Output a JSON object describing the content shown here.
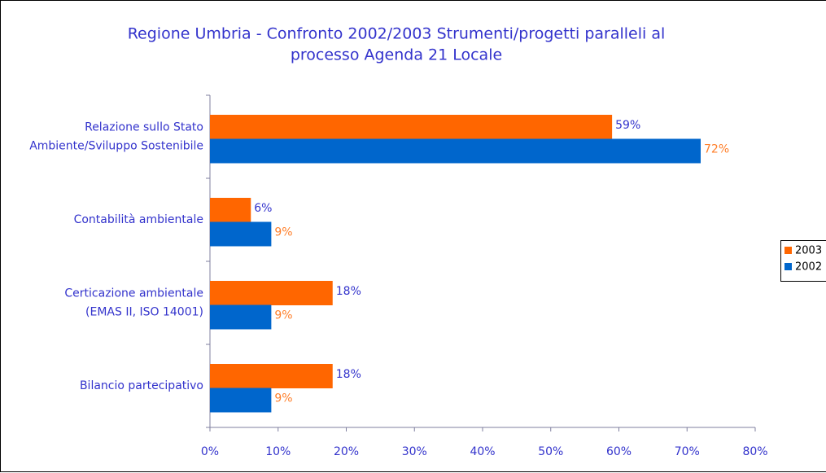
{
  "chart_data": {
    "type": "barh",
    "title": [
      "Regione Umbria - Confronto 2002/2003 Strumenti/progetti paralleli al",
      "processo Agenda 21 Locale"
    ],
    "categories": [
      [
        "Relazione sullo Stato",
        "Ambiente/Sviluppo Sostenibile"
      ],
      [
        "Contabilità ambientale"
      ],
      [
        "Certicazione ambientale",
        "(EMAS II, ISO 14001)"
      ],
      [
        "Bilancio partecipativo"
      ]
    ],
    "series": [
      {
        "name": "2003",
        "color": "#ff6600",
        "label_color": "#3333cc",
        "values": [
          59,
          6,
          18,
          18
        ],
        "value_labels": [
          "59%",
          "6%",
          "18%",
          "18%"
        ]
      },
      {
        "name": "2002",
        "color": "#0066cc",
        "label_color": "#ff7f2a",
        "values": [
          72,
          9,
          9,
          9
        ],
        "value_labels": [
          "72%",
          "9%",
          "9%",
          "9%"
        ]
      }
    ],
    "xlim": [
      0,
      80
    ],
    "xticks": [
      {
        "value": 0,
        "label": "0%"
      },
      {
        "value": 10,
        "label": "10%"
      },
      {
        "value": 20,
        "label": "20%"
      },
      {
        "value": 30,
        "label": "30%"
      },
      {
        "value": 40,
        "label": "40%"
      },
      {
        "value": 50,
        "label": "50%"
      },
      {
        "value": 60,
        "label": "60%"
      },
      {
        "value": 70,
        "label": "70%"
      },
      {
        "value": 80,
        "label": "80%"
      }
    ],
    "legend": "right"
  }
}
